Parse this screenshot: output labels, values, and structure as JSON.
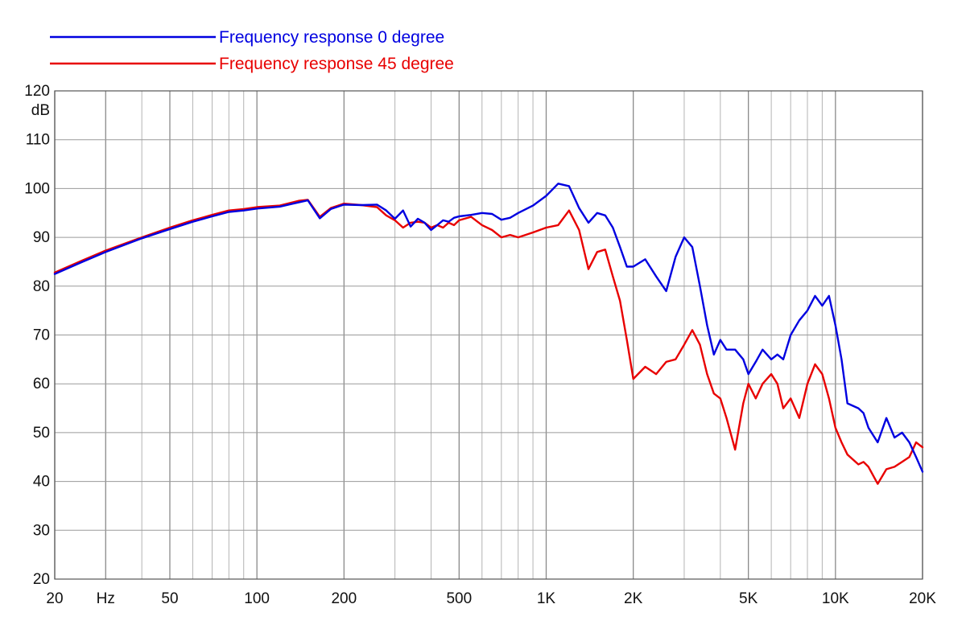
{
  "chart_data": {
    "type": "line",
    "title": "",
    "xlabel": "",
    "ylabel": "dB",
    "x_scale": "log",
    "xlim": [
      20,
      20000
    ],
    "ylim": [
      20,
      120
    ],
    "grid": true,
    "legend_position": "top-left",
    "x_tick_labels": [
      {
        "value": 20,
        "label": "20"
      },
      {
        "value": 30,
        "label": "Hz"
      },
      {
        "value": 50,
        "label": "50"
      },
      {
        "value": 100,
        "label": "100"
      },
      {
        "value": 200,
        "label": "200"
      },
      {
        "value": 500,
        "label": "500"
      },
      {
        "value": 1000,
        "label": "1K"
      },
      {
        "value": 2000,
        "label": "2K"
      },
      {
        "value": 5000,
        "label": "5K"
      },
      {
        "value": 10000,
        "label": "10K"
      },
      {
        "value": 20000,
        "label": "20K"
      }
    ],
    "x_gridlines": [
      20,
      30,
      40,
      50,
      60,
      70,
      80,
      90,
      100,
      200,
      300,
      400,
      500,
      600,
      700,
      800,
      900,
      1000,
      2000,
      3000,
      4000,
      5000,
      6000,
      7000,
      8000,
      9000,
      10000,
      20000
    ],
    "y_ticks": [
      {
        "value": 20,
        "label": "20"
      },
      {
        "value": 30,
        "label": "30"
      },
      {
        "value": 40,
        "label": "40"
      },
      {
        "value": 50,
        "label": "50"
      },
      {
        "value": 60,
        "label": "60"
      },
      {
        "value": 70,
        "label": "70"
      },
      {
        "value": 80,
        "label": "80"
      },
      {
        "value": 90,
        "label": "90"
      },
      {
        "value": 100,
        "label": "100"
      },
      {
        "value": 110,
        "label": "110"
      },
      {
        "value": 120,
        "label": "120"
      }
    ],
    "series": [
      {
        "name": "Frequency response 0 degree",
        "color": "#0000e0",
        "x": [
          20,
          25,
          30,
          40,
          50,
          60,
          70,
          80,
          90,
          100,
          120,
          140,
          150,
          165,
          180,
          200,
          230,
          260,
          280,
          300,
          320,
          340,
          360,
          380,
          400,
          420,
          440,
          460,
          480,
          500,
          550,
          600,
          650,
          700,
          750,
          800,
          900,
          1000,
          1100,
          1200,
          1300,
          1400,
          1500,
          1600,
          1700,
          1800,
          1900,
          2000,
          2200,
          2400,
          2600,
          2800,
          3000,
          3200,
          3400,
          3600,
          3800,
          4000,
          4200,
          4500,
          4800,
          5000,
          5300,
          5600,
          6000,
          6300,
          6600,
          7000,
          7500,
          8000,
          8500,
          9000,
          9500,
          10000,
          10500,
          11000,
          12000,
          12500,
          13000,
          14000,
          15000,
          16000,
          17000,
          18000,
          19000,
          20000
        ],
        "values": [
          82.5,
          85,
          87,
          89.8,
          91.7,
          93.2,
          94.3,
          95.2,
          95.5,
          95.9,
          96.3,
          97.2,
          97.6,
          93.9,
          95.8,
          96.7,
          96.6,
          96.7,
          95.5,
          93.8,
          95.5,
          92.2,
          93.8,
          93.0,
          91.5,
          92.5,
          93.5,
          93.2,
          94.0,
          94.3,
          94.6,
          95.0,
          94.8,
          93.6,
          94.0,
          95.0,
          96.5,
          98.5,
          101.0,
          100.5,
          96.0,
          93.0,
          95.0,
          94.5,
          92.0,
          88.0,
          84.0,
          84.0,
          85.5,
          82.0,
          79.0,
          86.0,
          90.0,
          88.0,
          80.0,
          72.0,
          66.0,
          69.0,
          67.0,
          67.0,
          65.0,
          62.0,
          64.5,
          67.0,
          65.0,
          66.0,
          65.0,
          70.0,
          73.0,
          75.0,
          78.0,
          76.0,
          78.0,
          72.0,
          65.0,
          56.0,
          55.0,
          54.0,
          51.0,
          48.0,
          53.0,
          49.0,
          50.0,
          48.0,
          45.0,
          42.0
        ]
      },
      {
        "name": "Frequency response 45 degree",
        "color": "#e80000",
        "x": [
          20,
          25,
          30,
          40,
          50,
          60,
          70,
          80,
          90,
          100,
          120,
          140,
          150,
          165,
          180,
          200,
          230,
          260,
          280,
          300,
          320,
          340,
          360,
          380,
          400,
          420,
          440,
          460,
          480,
          500,
          550,
          600,
          650,
          700,
          750,
          800,
          900,
          1000,
          1100,
          1200,
          1300,
          1400,
          1500,
          1600,
          1700,
          1800,
          1900,
          2000,
          2200,
          2400,
          2600,
          2800,
          3000,
          3200,
          3400,
          3600,
          3800,
          4000,
          4200,
          4500,
          4800,
          5000,
          5300,
          5600,
          6000,
          6300,
          6600,
          7000,
          7500,
          8000,
          8500,
          9000,
          9500,
          10000,
          10500,
          11000,
          12000,
          12500,
          13000,
          14000,
          15000,
          16000,
          17000,
          18000,
          19000,
          20000
        ],
        "values": [
          82.8,
          85.3,
          87.3,
          90.0,
          92.0,
          93.5,
          94.6,
          95.5,
          95.8,
          96.2,
          96.5,
          97.5,
          97.7,
          94.2,
          96.0,
          96.9,
          96.6,
          96.2,
          94.5,
          93.5,
          92.0,
          93.0,
          93.2,
          93.0,
          92.0,
          92.5,
          92.0,
          93.0,
          92.5,
          93.5,
          94.2,
          92.5,
          91.5,
          90.0,
          90.5,
          90.0,
          91.0,
          92.0,
          92.5,
          95.5,
          91.5,
          83.5,
          87.0,
          87.5,
          82.0,
          77.0,
          69.0,
          61.0,
          63.5,
          62.0,
          64.5,
          65.0,
          68.0,
          71.0,
          68.0,
          62.0,
          58.0,
          57.0,
          53.0,
          46.5,
          56.0,
          60.0,
          57.0,
          60.0,
          62.0,
          60.0,
          55.0,
          57.0,
          53.0,
          60.0,
          64.0,
          62.0,
          57.0,
          51.0,
          48.0,
          45.5,
          43.5,
          44.0,
          43.0,
          39.5,
          42.5,
          43.0,
          44.0,
          45.0,
          48.0,
          47.0
        ]
      }
    ]
  }
}
